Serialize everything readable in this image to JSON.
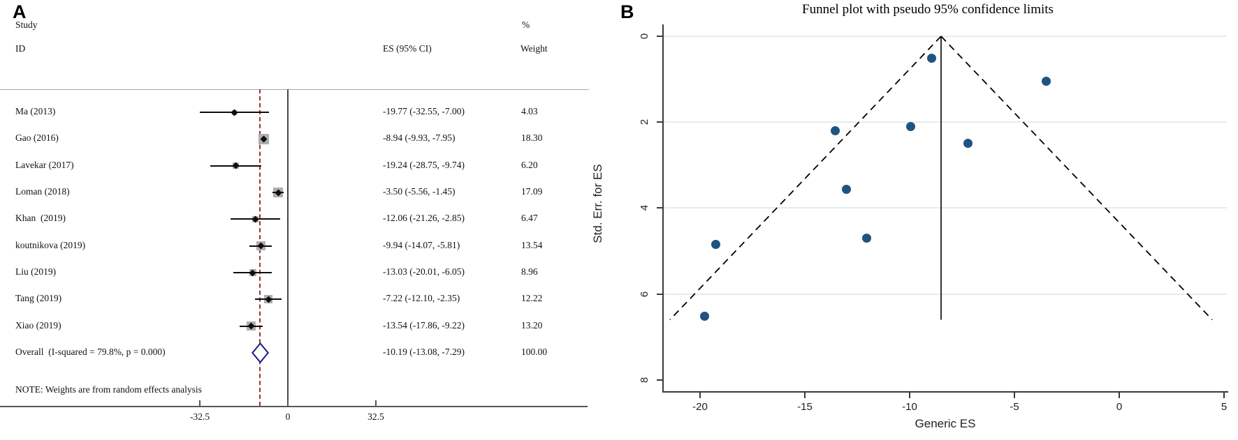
{
  "colors": {
    "dot_navy": "#1f5380",
    "diamond_navy": "#1c1c84",
    "ref_maroon": "#943634",
    "weight_box_gray": "#aeaeae",
    "grid_light": "#e2edf0",
    "axis_dark": "#3a3a3a"
  },
  "panel_a": {
    "label": "A",
    "header": {
      "study": "Study",
      "id": "ID",
      "es_ci": "ES (95% CI)",
      "percent": "%",
      "weight": "Weight"
    },
    "note": "NOTE: Weights are from random effects analysis"
  },
  "panel_b": {
    "label": "B"
  },
  "chart_data": [
    {
      "type": "scatter",
      "subtype": "forest-plot",
      "title": "",
      "x_ticks": [
        -32.5,
        0,
        32.5
      ],
      "x_tick_labels": [
        "-32.5",
        "0",
        "32.5"
      ],
      "ref_line_x": -10.19,
      "zero_line_x": 0,
      "rows": [
        {
          "study": "Ma (2013)",
          "es": -19.77,
          "lo": -32.55,
          "hi": -7.0,
          "display": "-19.77 (-32.55, -7.00)",
          "weight": 4.03,
          "weight_display": "4.03"
        },
        {
          "study": "Gao (2016)",
          "es": -8.94,
          "lo": -9.93,
          "hi": -7.95,
          "display": "-8.94 (-9.93, -7.95)",
          "weight": 18.3,
          "weight_display": "18.30"
        },
        {
          "study": "Lavekar (2017)",
          "es": -19.24,
          "lo": -28.75,
          "hi": -9.74,
          "display": "-19.24 (-28.75, -9.74)",
          "weight": 6.2,
          "weight_display": "6.20"
        },
        {
          "study": "Loman (2018)",
          "es": -3.5,
          "lo": -5.56,
          "hi": -1.45,
          "display": "-3.50 (-5.56, -1.45)",
          "weight": 17.09,
          "weight_display": "17.09"
        },
        {
          "study": "Khan  (2019)",
          "es": -12.06,
          "lo": -21.26,
          "hi": -2.85,
          "display": "-12.06 (-21.26, -2.85)",
          "weight": 6.47,
          "weight_display": "6.47"
        },
        {
          "study": "koutnikova (2019)",
          "es": -9.94,
          "lo": -14.07,
          "hi": -5.81,
          "display": "-9.94 (-14.07, -5.81)",
          "weight": 13.54,
          "weight_display": "13.54"
        },
        {
          "study": "Liu (2019)",
          "es": -13.03,
          "lo": -20.01,
          "hi": -6.05,
          "display": "-13.03 (-20.01, -6.05)",
          "weight": 8.96,
          "weight_display": "8.96"
        },
        {
          "study": "Tang (2019)",
          "es": -7.22,
          "lo": -12.1,
          "hi": -2.35,
          "display": "-7.22 (-12.10, -2.35)",
          "weight": 12.22,
          "weight_display": "12.22"
        },
        {
          "study": "Xiao (2019)",
          "es": -13.54,
          "lo": -17.86,
          "hi": -9.22,
          "display": "-13.54 (-17.86, -9.22)",
          "weight": 13.2,
          "weight_display": "13.20"
        }
      ],
      "overall": {
        "label": "Overall  (I-squared = 79.8%, p = 0.000)",
        "es": -10.19,
        "lo": -13.08,
        "hi": -7.29,
        "display": "-10.19 (-13.08, -7.29)",
        "weight_display": "100.00"
      }
    },
    {
      "type": "scatter",
      "subtype": "funnel-plot",
      "title": "Funnel plot with pseudo 95% confidence limits",
      "xlabel": "Generic ES",
      "ylabel": "Std. Err. for ES",
      "x_ticks": [
        -20,
        -15,
        -10,
        -5,
        0,
        5
      ],
      "y_ticks": [
        0,
        2,
        4,
        6,
        8
      ],
      "xlim": [
        -21.8,
        5.2
      ],
      "ylim": [
        0,
        8.27
      ],
      "center_line_x": -8.5,
      "pseudo_ci_z": 1.96,
      "pseudo_ci_max_se": 6.6,
      "points": [
        {
          "x": -19.77,
          "se": 6.52
        },
        {
          "x": -8.94,
          "se": 0.51
        },
        {
          "x": -19.24,
          "se": 4.85
        },
        {
          "x": -3.5,
          "se": 1.05
        },
        {
          "x": -12.06,
          "se": 4.7
        },
        {
          "x": -9.94,
          "se": 2.11
        },
        {
          "x": -13.03,
          "se": 3.56
        },
        {
          "x": -7.22,
          "se": 2.49
        },
        {
          "x": -13.54,
          "se": 2.2
        }
      ]
    }
  ]
}
